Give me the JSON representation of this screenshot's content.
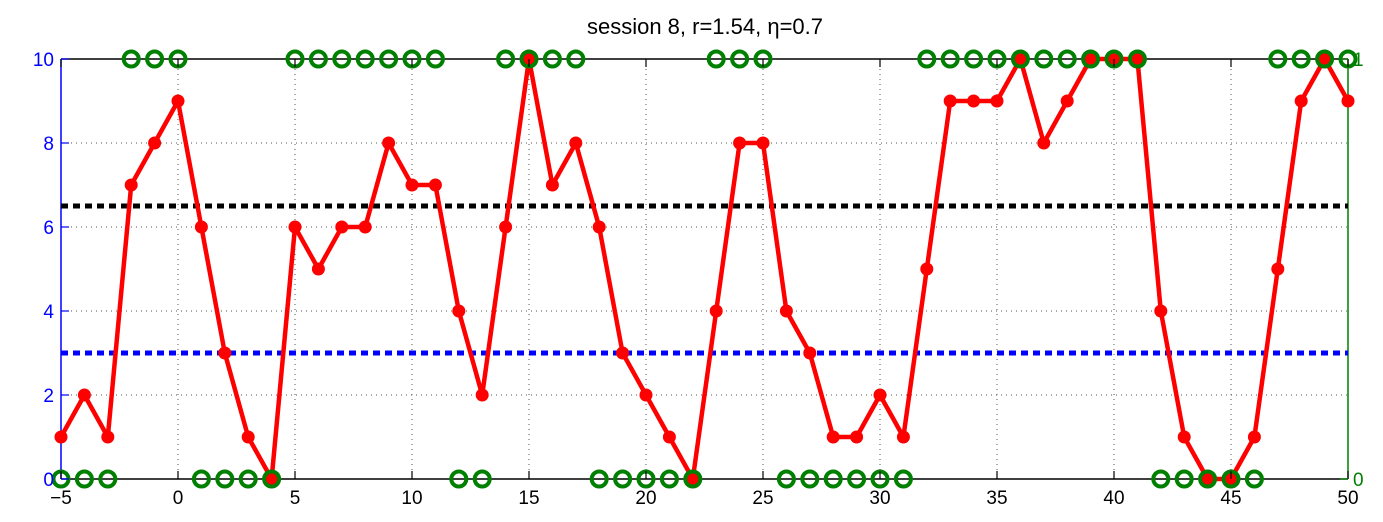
{
  "chart_data": {
    "type": "line",
    "title": "session 8, r=1.54, η=0.7",
    "xlim": [
      -5,
      50
    ],
    "ylim_left": [
      0,
      10
    ],
    "ylim_right": [
      0,
      1
    ],
    "grid": true,
    "x_ticks": [
      -5,
      0,
      5,
      10,
      15,
      20,
      25,
      30,
      35,
      40,
      45,
      50
    ],
    "y_ticks_left": [
      0,
      2,
      4,
      6,
      8,
      10
    ],
    "y_ticks_right": [
      0,
      1
    ],
    "colors": {
      "main_series": "#ff0000",
      "binary_series": "#008000",
      "upper_threshold": "#000000",
      "lower_threshold": "#0000ff",
      "left_axis": "#0000ff",
      "right_axis": "#008000"
    },
    "series": [
      {
        "axis": "left",
        "style": "line-with-dot-markers",
        "x": [
          -5,
          -4,
          -3,
          -2,
          -1,
          0,
          1,
          2,
          3,
          4,
          5,
          6,
          7,
          8,
          9,
          10,
          11,
          12,
          13,
          14,
          15,
          16,
          17,
          18,
          19,
          20,
          21,
          22,
          23,
          24,
          25,
          26,
          27,
          28,
          29,
          30,
          31,
          32,
          33,
          34,
          35,
          36,
          37,
          38,
          39,
          40,
          41,
          42,
          43,
          44,
          45,
          46,
          47,
          48,
          49,
          50
        ],
        "values": [
          1,
          2,
          1,
          7,
          8,
          9,
          6,
          3,
          1,
          0,
          6,
          5,
          6,
          6,
          8,
          7,
          7,
          4,
          2,
          6,
          10,
          7,
          8,
          6,
          3,
          2,
          1,
          0,
          4,
          8,
          8,
          4,
          3,
          1,
          1,
          2,
          1,
          5,
          9,
          9,
          9,
          10,
          8,
          9,
          10,
          10,
          10,
          4,
          1,
          0,
          0,
          1,
          5,
          9,
          10,
          9
        ]
      },
      {
        "axis": "right",
        "style": "open-circle-markers",
        "x": [
          -5,
          -4,
          -3,
          -2,
          -1,
          0,
          1,
          2,
          3,
          4,
          5,
          6,
          7,
          8,
          9,
          10,
          11,
          12,
          13,
          14,
          15,
          16,
          17,
          18,
          19,
          20,
          21,
          22,
          23,
          24,
          25,
          26,
          27,
          28,
          29,
          30,
          31,
          32,
          33,
          34,
          35,
          36,
          37,
          38,
          39,
          40,
          41,
          42,
          43,
          44,
          45,
          46,
          47,
          48,
          49,
          50
        ],
        "values": [
          0,
          0,
          0,
          1,
          1,
          1,
          0,
          0,
          0,
          0,
          1,
          1,
          1,
          1,
          1,
          1,
          1,
          0,
          0,
          1,
          1,
          1,
          1,
          0,
          0,
          0,
          0,
          0,
          1,
          1,
          1,
          0,
          0,
          0,
          0,
          0,
          0,
          1,
          1,
          1,
          1,
          1,
          1,
          1,
          1,
          1,
          1,
          0,
          0,
          0,
          0,
          0,
          1,
          1,
          1,
          1
        ]
      },
      {
        "axis": "left",
        "style": "dashed-hline",
        "values": [
          6.5
        ]
      },
      {
        "axis": "left",
        "style": "dashed-hline",
        "values": [
          3
        ]
      }
    ]
  }
}
